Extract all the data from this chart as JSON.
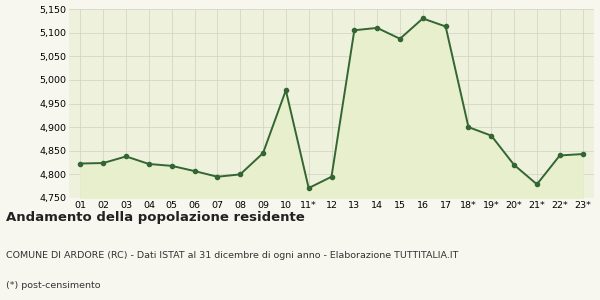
{
  "x_labels": [
    "01",
    "02",
    "03",
    "04",
    "05",
    "06",
    "07",
    "08",
    "09",
    "10",
    "11*",
    "12",
    "13",
    "14",
    "15",
    "16",
    "17",
    "18*",
    "19*",
    "20*",
    "21*",
    "22*",
    "23*"
  ],
  "y_values": [
    4823,
    4824,
    4838,
    4822,
    4818,
    4807,
    4795,
    4800,
    4845,
    4978,
    4771,
    4795,
    5105,
    5110,
    5087,
    5130,
    5113,
    4900,
    4882,
    4820,
    4779,
    4840,
    4843
  ],
  "ylim": [
    4750,
    5150
  ],
  "yticks": [
    4750,
    4800,
    4850,
    4900,
    4950,
    5000,
    5050,
    5100,
    5150
  ],
  "line_color": "#336633",
  "fill_color": "#e8efcc",
  "marker": "o",
  "marker_size": 3.0,
  "line_width": 1.4,
  "bg_color": "#f7f7f0",
  "plot_bg_color": "#eef2dd",
  "grid_color": "#d0d0c0",
  "title": "Andamento della popolazione residente",
  "subtitle": "COMUNE DI ARDORE (RC) - Dati ISTAT al 31 dicembre di ogni anno - Elaborazione TUTTITALIA.IT",
  "footnote": "(*) post-censimento",
  "title_fontsize": 9.5,
  "subtitle_fontsize": 6.8,
  "footnote_fontsize": 6.8,
  "tick_fontsize": 6.8
}
